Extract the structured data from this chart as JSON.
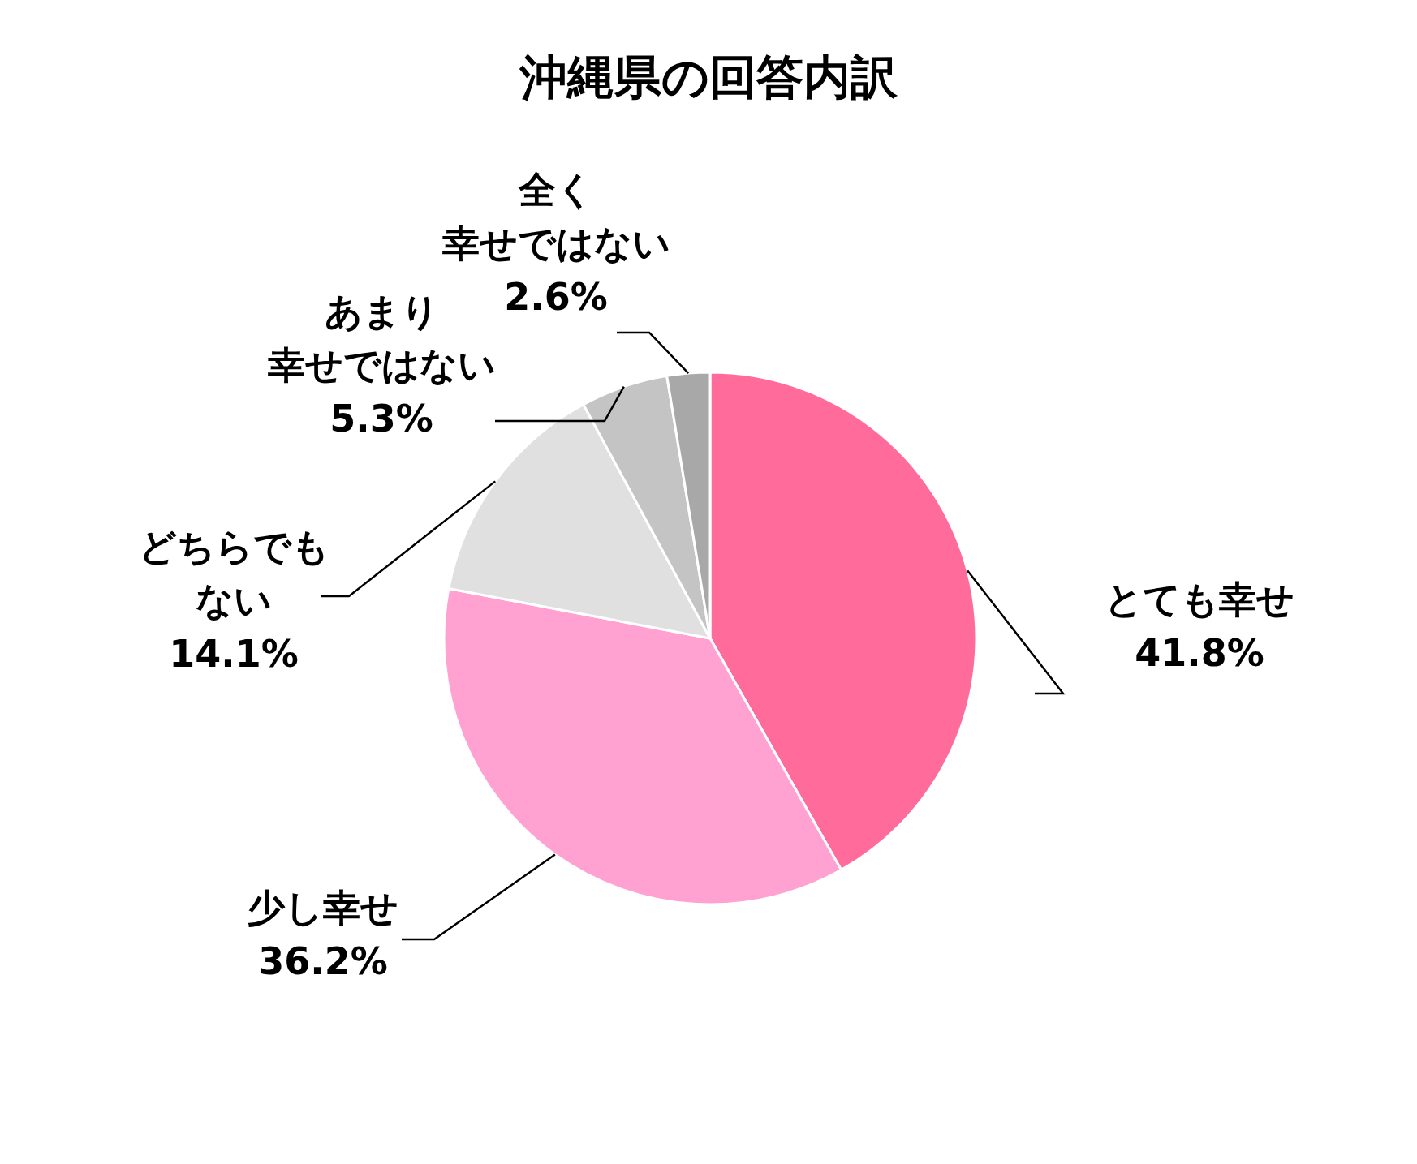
{
  "chart_data": {
    "type": "pie",
    "title": "沖縄県の回答内訳",
    "categories": [
      "とても幸せ",
      "少し幸せ",
      "どちらでもない",
      "あまり幸せではない",
      "全く幸せではない"
    ],
    "values": [
      41.8,
      36.2,
      14.1,
      5.3,
      2.6
    ],
    "value_labels": [
      "41.8%",
      "36.2%",
      "14.1%",
      "5.3%",
      "2.6%"
    ],
    "colors": [
      "#ff6b9a",
      "#ffa2d2",
      "#e0e0e0",
      "#c4c4c4",
      "#a8a8a8"
    ]
  }
}
